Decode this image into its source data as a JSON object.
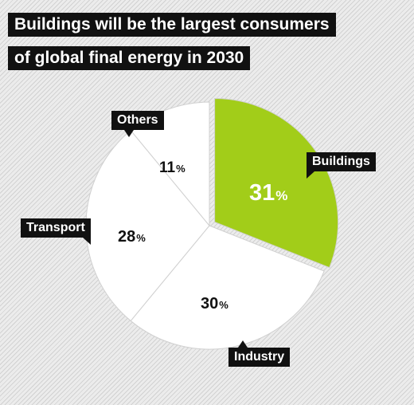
{
  "title": [
    "Buildings will be the largest consumers",
    "of global final energy in 2030"
  ],
  "chart_data": {
    "type": "pie",
    "percent_symbol": "%",
    "slices": [
      {
        "label": "Buildings",
        "value": 31,
        "display": "31",
        "color": "#a2cd19"
      },
      {
        "label": "Industry",
        "value": 30,
        "display": "30",
        "color": "#ffffff"
      },
      {
        "label": "Transport",
        "value": 28,
        "display": "28",
        "color": "#ffffff"
      },
      {
        "label": "Others",
        "value": 11,
        "display": "11",
        "color": "#ffffff"
      }
    ]
  }
}
